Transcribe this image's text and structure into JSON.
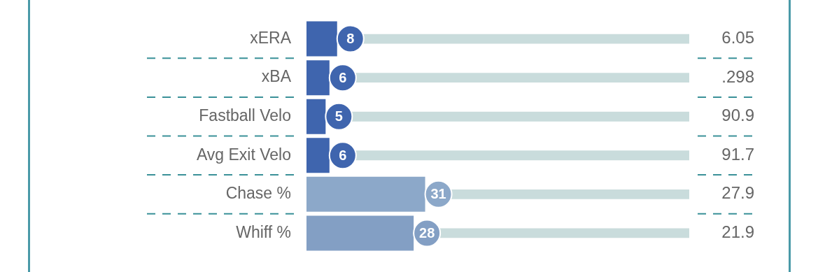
{
  "chart_data": {
    "type": "bar",
    "orientation": "horizontal",
    "stacked": true,
    "categories": [
      "xERA",
      "xBA",
      "Fastball Velo",
      "Avg Exit Velo",
      "Chase %",
      "Whiff %"
    ],
    "series": [
      {
        "colors": [
          "#3f65ae",
          "#3f65ae",
          "#3f65ae",
          "#3f65ae",
          "#8ca8c9",
          "#839fc4"
        ],
        "values": [
          8,
          6,
          5,
          6,
          31,
          28
        ]
      },
      {
        "color": "#c9dcdc",
        "values": [
          92,
          94,
          95,
          94,
          69,
          72
        ],
        "value_labels": [
          null,
          null,
          null,
          null,
          null,
          null
        ]
      }
    ],
    "tick_labels": "y",
    "data_labels": true,
    "annotations": [
      "6.05",
      ".298",
      "90.9",
      "91.7",
      "27.9",
      "21.9"
    ]
  }
}
